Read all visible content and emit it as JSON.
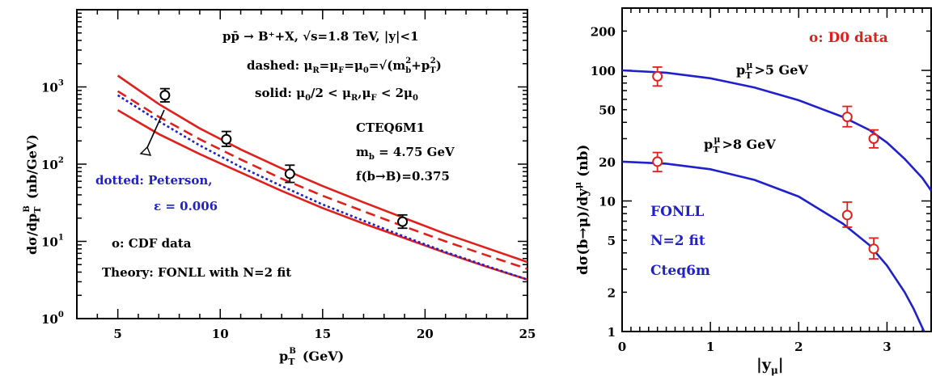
{
  "colors": {
    "axis": "#000000",
    "red": "#e0201c",
    "blue": "#2020cc"
  },
  "chart_data": [
    {
      "type": "line",
      "y_scale": "log",
      "xlim": [
        3,
        25
      ],
      "ylim": [
        1,
        10000
      ],
      "xlabel": "p",
      "xlabel_sub": "T",
      "xlabel_sup": "B",
      "xlabel_unit": "(GeV)",
      "ylabel": "dσ/dp",
      "ylabel_sub": "T",
      "ylabel_sup": "B",
      "ylabel_unit": "(nb/GeV)",
      "x_ticks": [
        {
          "value": 5,
          "label": "5"
        },
        {
          "value": 10,
          "label": "10"
        },
        {
          "value": 15,
          "label": "15"
        },
        {
          "value": 20,
          "label": "20"
        },
        {
          "value": 25,
          "label": "25"
        }
      ],
      "y_ticks": [
        {
          "value": 1,
          "base": "10",
          "exp": "0"
        },
        {
          "value": 10,
          "base": "10",
          "exp": "1"
        },
        {
          "value": 100,
          "base": "10",
          "exp": "2"
        },
        {
          "value": 1000,
          "base": "10",
          "exp": "3"
        }
      ],
      "annotations": {
        "process": "pp̄ → B⁺+X, √s=1.8 TeV, |y|<1",
        "dashed_label": "dashed: μ",
        "dashed_rest": "=μ",
        "dashed_eq": "=μ",
        "dashed_sqrt": "=√(m",
        "dashed_tail": "+p",
        "dashed_close": ")",
        "solid_label": "solid: μ",
        "solid_mid": "/2 < μ",
        "solid_mid2": ",μ",
        "solid_end": " < 2μ",
        "sub_R": "R",
        "sub_F": "F",
        "sub_0": "0",
        "sub_b": "b",
        "sub_T": "T",
        "sup_2": "2",
        "pdf": "CTEQ6M1",
        "mb": "m",
        "mb_value": " = 4.75 GeV",
        "frag": "f(b→B)=0.375",
        "peterson_line1": "dotted: Peterson,",
        "peterson_line2": "ε = 0.006",
        "data_legend": "ο: CDF data",
        "theory_legend": "Theory: FONLL with N=2 fit"
      },
      "series": [
        {
          "style": "solid",
          "color": "red",
          "x": [
            5,
            7,
            9,
            11,
            13,
            15,
            17,
            19,
            21,
            23,
            25
          ],
          "y": [
            1400,
            600,
            290,
            155,
            88,
            52,
            32,
            20,
            12.5,
            8.2,
            5.4
          ]
        },
        {
          "style": "solid",
          "color": "red",
          "x": [
            5,
            7,
            9,
            11,
            13,
            15,
            17,
            19,
            21,
            23,
            25
          ],
          "y": [
            500,
            245,
            135,
            78,
            45,
            27,
            17,
            11,
            7.1,
            4.7,
            3.2
          ]
        },
        {
          "style": "dashed",
          "color": "red",
          "x": [
            5,
            7,
            9,
            11,
            13,
            15,
            17,
            19,
            21,
            23,
            25
          ],
          "y": [
            880,
            410,
            210,
            115,
            65,
            39,
            24.5,
            15.5,
            10,
            6.6,
            4.4
          ]
        },
        {
          "style": "dotted",
          "color": "blue",
          "x": [
            5,
            7,
            9,
            11,
            13,
            15,
            17,
            19,
            21,
            23,
            25
          ],
          "y": [
            780,
            360,
            175,
            92,
            52,
            30,
            18.5,
            11.5,
            7.3,
            4.8,
            3.2
          ]
        }
      ],
      "data_points": [
        {
          "x": 7.3,
          "y": 780,
          "err_lo": 640,
          "err_hi": 950
        },
        {
          "x": 10.3,
          "y": 210,
          "err_lo": 170,
          "err_hi": 265
        },
        {
          "x": 13.4,
          "y": 75,
          "err_lo": 58,
          "err_hi": 97
        },
        {
          "x": 18.9,
          "y": 18,
          "err_lo": 14.8,
          "err_hi": 22
        }
      ]
    },
    {
      "type": "line",
      "y_scale": "log",
      "xlim": [
        0,
        3.5
      ],
      "ylim": [
        1,
        300
      ],
      "xlabel": "|y",
      "xlabel_sub": "μ",
      "xlabel_close": "|",
      "ylabel": "dσ(b→μ)/dy",
      "ylabel_sup": "μ",
      "ylabel_unit": "(nb)",
      "x_ticks": [
        {
          "value": 0,
          "label": "0"
        },
        {
          "value": 1,
          "label": "1"
        },
        {
          "value": 2,
          "label": "2"
        },
        {
          "value": 3,
          "label": "3"
        }
      ],
      "y_ticks": [
        {
          "value": 1,
          "label": "1"
        },
        {
          "value": 2,
          "label": "2"
        },
        {
          "value": 5,
          "label": "5"
        },
        {
          "value": 10,
          "label": "10"
        },
        {
          "value": 20,
          "label": "20"
        },
        {
          "value": 50,
          "label": "50"
        },
        {
          "value": 100,
          "label": "100"
        },
        {
          "value": 200,
          "label": "200"
        }
      ],
      "annotations": {
        "data_legend": "ο: D0 data",
        "curve1_label": "p",
        "curve1_rest": ">5 GeV",
        "curve2_label": "p",
        "curve2_rest": ">8 GeV",
        "sub_T": "T",
        "sup_mu": "μ",
        "theory_line1": "FONLL",
        "theory_line2": "N=2 fit",
        "theory_line3": "Cteq6m"
      },
      "series": [
        {
          "name": "p_T^μ>5 GeV",
          "color": "blue",
          "x": [
            0,
            0.5,
            1,
            1.5,
            2,
            2.5,
            2.8,
            3,
            3.2,
            3.4,
            3.5
          ],
          "y": [
            100,
            96,
            87,
            74,
            59,
            44,
            35,
            28,
            21,
            15,
            12
          ]
        },
        {
          "name": "p_T^μ>8 GeV",
          "color": "blue",
          "x": [
            0,
            0.5,
            1,
            1.5,
            2,
            2.5,
            2.8,
            3,
            3.2,
            3.3,
            3.42
          ],
          "y": [
            20,
            19.3,
            17.5,
            14.5,
            10.8,
            6.7,
            4.6,
            3.2,
            2.0,
            1.5,
            1.0
          ]
        }
      ],
      "data_points": [
        {
          "x": 0.4,
          "y": 90,
          "err_lo": 76,
          "err_hi": 106
        },
        {
          "x": 0.4,
          "y": 20,
          "err_lo": 16.8,
          "err_hi": 23.5
        },
        {
          "x": 2.55,
          "y": 44,
          "err_lo": 37,
          "err_hi": 53
        },
        {
          "x": 2.85,
          "y": 30,
          "err_lo": 25.5,
          "err_hi": 35
        },
        {
          "x": 2.55,
          "y": 7.8,
          "err_lo": 6.3,
          "err_hi": 9.8
        },
        {
          "x": 2.85,
          "y": 4.3,
          "err_lo": 3.6,
          "err_hi": 5.2
        }
      ]
    }
  ]
}
